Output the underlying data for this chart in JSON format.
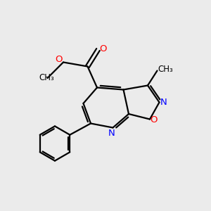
{
  "bg_color": "#ebebeb",
  "bond_color": "#000000",
  "bond_width": 1.6,
  "atom_colors": {
    "O": "#ff0000",
    "N": "#0000ff",
    "C": "#000000"
  },
  "font_size_atom": 9.5,
  "font_size_methyl": 8.5,
  "fig_size": [
    3.0,
    3.0
  ],
  "dpi": 100
}
